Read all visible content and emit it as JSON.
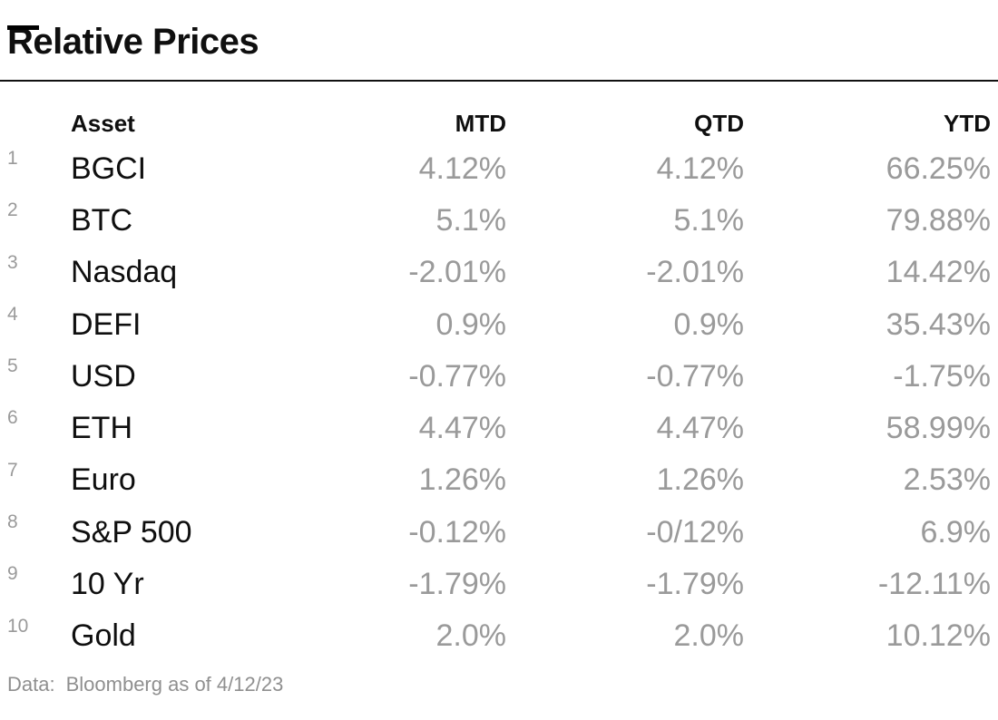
{
  "title": "Relative Prices",
  "footer": {
    "label": "Data:",
    "text": "Bloomberg as of 4/12/23"
  },
  "chart_data": {
    "type": "table",
    "title": "Relative Prices",
    "columns": [
      "Asset",
      "MTD",
      "QTD",
      "YTD"
    ],
    "rows": [
      {
        "rank": "1",
        "asset": "BGCI",
        "mtd": "4.12%",
        "qtd": "4.12%",
        "ytd": "66.25%"
      },
      {
        "rank": "2",
        "asset": "BTC",
        "mtd": "5.1%",
        "qtd": "5.1%",
        "ytd": "79.88%"
      },
      {
        "rank": "3",
        "asset": "Nasdaq",
        "mtd": "-2.01%",
        "qtd": "-2.01%",
        "ytd": "14.42%"
      },
      {
        "rank": "4",
        "asset": "DEFI",
        "mtd": "0.9%",
        "qtd": "0.9%",
        "ytd": "35.43%"
      },
      {
        "rank": "5",
        "asset": "USD",
        "mtd": "-0.77%",
        "qtd": "-0.77%",
        "ytd": "-1.75%"
      },
      {
        "rank": "6",
        "asset": "ETH",
        "mtd": "4.47%",
        "qtd": "4.47%",
        "ytd": "58.99%"
      },
      {
        "rank": "7",
        "asset": "Euro",
        "mtd": "1.26%",
        "qtd": "1.26%",
        "ytd": "2.53%"
      },
      {
        "rank": "8",
        "asset": "S&P 500",
        "mtd": "-0.12%",
        "qtd": "-0/12%",
        "ytd": "6.9%"
      },
      {
        "rank": "9",
        "asset": "10 Yr",
        "mtd": "-1.79%",
        "qtd": "-1.79%",
        "ytd": "-12.11%"
      },
      {
        "rank": "10",
        "asset": "Gold",
        "mtd": "2.0%",
        "qtd": "2.0%",
        "ytd": "10.12%"
      }
    ],
    "source_note": "Data: Bloomberg as of 4/12/23",
    "layout": {
      "value_alignment": "right",
      "grid": "off",
      "header_rule": "on"
    }
  },
  "colors": {
    "background": "#ffffff",
    "text": "#0f0f0f",
    "muted_values": "#9a9a9a",
    "footer_text": "#8f8f8f",
    "rule": "#111111",
    "brand_dash": "#000000"
  }
}
